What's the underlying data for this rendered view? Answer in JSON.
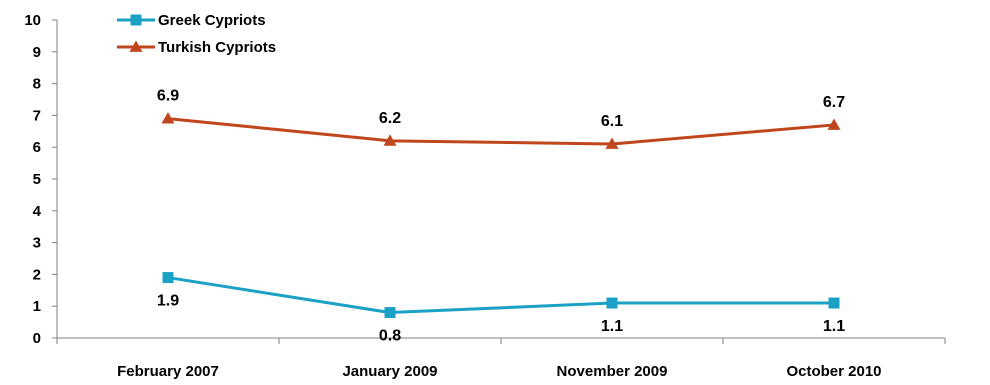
{
  "chart_data": {
    "type": "line",
    "categories": [
      "February 2007",
      "January 2009",
      "November 2009",
      "October 2010"
    ],
    "series": [
      {
        "name": "Greek Cypriots",
        "values": [
          1.9,
          0.8,
          1.1,
          1.1
        ],
        "labels": [
          "1.9",
          "0.8",
          "1.1",
          "1.1"
        ],
        "color": "#1ba1c6",
        "marker": "square"
      },
      {
        "name": "Turkish Cypriots",
        "values": [
          6.9,
          6.2,
          6.1,
          6.7
        ],
        "labels": [
          "6.9",
          "6.2",
          "6.1",
          "6.7"
        ],
        "color": "#c0471d",
        "marker": "triangle"
      }
    ],
    "ylim": [
      0,
      10
    ],
    "yticks": [
      "0",
      "1",
      "2",
      "3",
      "4",
      "5",
      "6",
      "7",
      "8",
      "9",
      "10"
    ],
    "grid": false,
    "legend_position": "top-left"
  }
}
